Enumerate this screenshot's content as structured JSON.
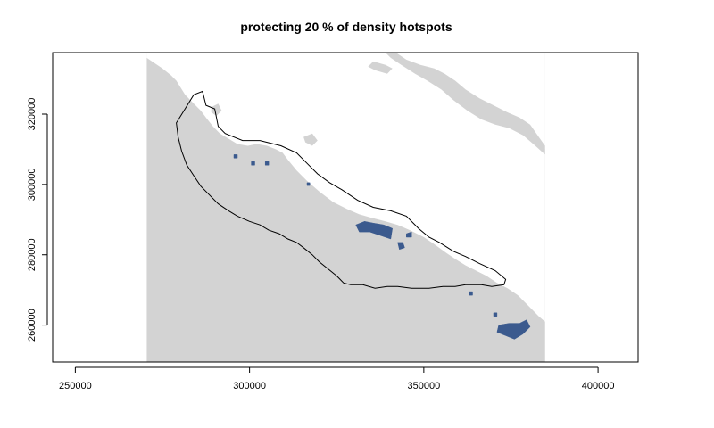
{
  "chart_data": {
    "type": "map",
    "title": "protecting 20 % of density hotspots",
    "xlabel": "",
    "ylabel": "",
    "xlim": [
      243500,
      411500
    ],
    "ylim": [
      249500,
      337500
    ],
    "x_ticks": [
      250000,
      300000,
      350000,
      400000
    ],
    "y_ticks": [
      260000,
      280000,
      300000,
      320000
    ],
    "x_tick_labels": [
      "250000",
      "300000",
      "350000",
      "400000"
    ],
    "y_tick_labels": [
      "260000",
      "280000",
      "300000",
      "320000"
    ],
    "colors": {
      "land": "#d3d3d3",
      "hotspot": "#3b5a8e",
      "boundary": "#000000"
    },
    "land_extent": {
      "x": [
        270500,
        384800
      ],
      "y": [
        249500,
        337500
      ]
    },
    "water_bodies": [
      {
        "name": "southwest-sea",
        "points": [
          [
            270500,
            336000
          ],
          [
            275000,
            333000
          ],
          [
            277500,
            331000
          ],
          [
            279000,
            329500
          ],
          [
            281500,
            325500
          ],
          [
            283500,
            323500
          ],
          [
            286000,
            321000
          ],
          [
            287500,
            319000
          ],
          [
            289500,
            316500
          ],
          [
            291500,
            314500
          ],
          [
            294000,
            313000
          ],
          [
            296500,
            311500
          ],
          [
            299500,
            311000
          ],
          [
            302000,
            311500
          ],
          [
            305000,
            311000
          ],
          [
            307500,
            310000
          ],
          [
            309500,
            309000
          ],
          [
            311000,
            307000
          ],
          [
            313500,
            304000
          ],
          [
            316500,
            301000
          ],
          [
            320000,
            298000
          ],
          [
            324000,
            295000
          ],
          [
            328000,
            293000
          ],
          [
            331500,
            291500
          ],
          [
            335000,
            290500
          ],
          [
            339000,
            289500
          ],
          [
            342500,
            288500
          ],
          [
            346000,
            287000
          ],
          [
            350000,
            285000
          ],
          [
            353000,
            283000
          ],
          [
            356500,
            280500
          ],
          [
            359500,
            278500
          ],
          [
            362000,
            277000
          ],
          [
            365000,
            275500
          ],
          [
            368000,
            274000
          ],
          [
            371000,
            272000
          ],
          [
            374000,
            270500
          ],
          [
            377000,
            268500
          ],
          [
            380000,
            265500
          ],
          [
            383000,
            262500
          ],
          [
            384800,
            261000
          ],
          [
            384800,
            337500
          ],
          [
            270500,
            337500
          ]
        ]
      },
      {
        "name": "northeast-strip",
        "points": [
          [
            352000,
            337500
          ],
          [
            356000,
            335000
          ],
          [
            361000,
            333000
          ],
          [
            366000,
            330500
          ],
          [
            370000,
            328500
          ],
          [
            374500,
            326000
          ],
          [
            378000,
            323000
          ],
          [
            380500,
            319000
          ],
          [
            382500,
            315000
          ],
          [
            384000,
            311500
          ],
          [
            384800,
            310000
          ],
          [
            384800,
            337500
          ]
        ]
      }
    ],
    "land_islands": [
      {
        "points": [
          [
            342000,
            337500
          ],
          [
            345000,
            335500
          ],
          [
            349000,
            334000
          ],
          [
            353000,
            333000
          ],
          [
            356000,
            331500
          ],
          [
            359000,
            329500
          ],
          [
            362000,
            327000
          ],
          [
            366000,
            324500
          ],
          [
            370000,
            322500
          ],
          [
            374000,
            320500
          ],
          [
            377500,
            319000
          ],
          [
            380500,
            317000
          ],
          [
            383000,
            313500
          ],
          [
            384800,
            311000
          ],
          [
            384800,
            308500
          ],
          [
            382000,
            311000
          ],
          [
            378500,
            314000
          ],
          [
            374500,
            316000
          ],
          [
            370500,
            317000
          ],
          [
            366500,
            318500
          ],
          [
            362500,
            321000
          ],
          [
            358500,
            324000
          ],
          [
            355000,
            327000
          ],
          [
            351000,
            329500
          ],
          [
            347500,
            331500
          ],
          [
            343500,
            334000
          ],
          [
            340500,
            336000
          ],
          [
            339000,
            337500
          ]
        ]
      },
      {
        "points": [
          [
            335500,
            335000
          ],
          [
            339000,
            334000
          ],
          [
            341000,
            333000
          ],
          [
            339500,
            331500
          ],
          [
            336000,
            332500
          ],
          [
            334000,
            333500
          ]
        ]
      },
      {
        "points": [
          [
            289000,
            322000
          ],
          [
            291000,
            323000
          ],
          [
            292000,
            321000
          ],
          [
            290500,
            319500
          ],
          [
            289000,
            320500
          ]
        ]
      },
      {
        "points": [
          [
            315500,
            313500
          ],
          [
            318000,
            314500
          ],
          [
            319500,
            312500
          ],
          [
            318000,
            311000
          ],
          [
            316000,
            312000
          ]
        ]
      }
    ],
    "boundary": [
      [
        279000,
        317500
      ],
      [
        284000,
        325500
      ],
      [
        286500,
        326500
      ],
      [
        287500,
        322500
      ],
      [
        290000,
        321500
      ],
      [
        291000,
        316500
      ],
      [
        293000,
        314500
      ],
      [
        298000,
        312500
      ],
      [
        303000,
        312500
      ],
      [
        309000,
        311000
      ],
      [
        313500,
        309000
      ],
      [
        316500,
        306000
      ],
      [
        319500,
        303000
      ],
      [
        323000,
        300500
      ],
      [
        326500,
        298500
      ],
      [
        331000,
        295500
      ],
      [
        335500,
        293500
      ],
      [
        340500,
        292500
      ],
      [
        345000,
        291000
      ],
      [
        348500,
        287500
      ],
      [
        351500,
        285000
      ],
      [
        354500,
        283500
      ],
      [
        358500,
        281000
      ],
      [
        362000,
        279500
      ],
      [
        366000,
        277500
      ],
      [
        370500,
        275500
      ],
      [
        373500,
        273000
      ],
      [
        373000,
        271500
      ],
      [
        369500,
        271000
      ],
      [
        366500,
        271500
      ],
      [
        362000,
        271500
      ],
      [
        359000,
        271000
      ],
      [
        355500,
        271000
      ],
      [
        351500,
        270500
      ],
      [
        346500,
        270500
      ],
      [
        342500,
        271000
      ],
      [
        339500,
        271000
      ],
      [
        336000,
        270500
      ],
      [
        332500,
        271500
      ],
      [
        329000,
        271500
      ],
      [
        327000,
        272000
      ],
      [
        325000,
        274000
      ],
      [
        322500,
        276000
      ],
      [
        320000,
        278000
      ],
      [
        318000,
        280000
      ],
      [
        315500,
        282000
      ],
      [
        313500,
        283500
      ],
      [
        311000,
        284500
      ],
      [
        308500,
        286000
      ],
      [
        305500,
        287000
      ],
      [
        303000,
        288500
      ],
      [
        300000,
        289500
      ],
      [
        296500,
        291000
      ],
      [
        294000,
        292500
      ],
      [
        291000,
        294500
      ],
      [
        288500,
        297000
      ],
      [
        286000,
        299500
      ],
      [
        284000,
        302500
      ],
      [
        282000,
        305500
      ],
      [
        280500,
        309500
      ],
      [
        279500,
        313500
      ]
    ],
    "hotspots": [
      {
        "points": [
          [
            330500,
            288500
          ],
          [
            333000,
            289500
          ],
          [
            335500,
            289000
          ],
          [
            338500,
            288500
          ],
          [
            341000,
            287500
          ],
          [
            340500,
            284500
          ],
          [
            337500,
            285500
          ],
          [
            334500,
            286500
          ],
          [
            331500,
            286500
          ]
        ]
      },
      {
        "points": [
          [
            371500,
            260000
          ],
          [
            374500,
            260500
          ],
          [
            377500,
            260500
          ],
          [
            379500,
            261500
          ],
          [
            380500,
            259500
          ],
          [
            378500,
            257500
          ],
          [
            376000,
            256000
          ],
          [
            373500,
            257000
          ],
          [
            371000,
            258000
          ]
        ]
      },
      {
        "points": [
          [
            342500,
            283500
          ],
          [
            344000,
            283500
          ],
          [
            344500,
            282000
          ],
          [
            343000,
            281500
          ]
        ]
      },
      {
        "points": [
          [
            345000,
            286000
          ],
          [
            346500,
            286500
          ],
          [
            346500,
            285000
          ],
          [
            345000,
            285000
          ]
        ]
      },
      {
        "points": [
          [
            295500,
            308500
          ],
          [
            296500,
            308500
          ],
          [
            296500,
            307500
          ],
          [
            295500,
            307500
          ]
        ]
      },
      {
        "points": [
          [
            300500,
            306500
          ],
          [
            301500,
            306500
          ],
          [
            301500,
            305500
          ],
          [
            300500,
            305500
          ]
        ]
      },
      {
        "points": [
          [
            304500,
            306500
          ],
          [
            305500,
            306500
          ],
          [
            305500,
            305500
          ],
          [
            304500,
            305500
          ]
        ]
      },
      {
        "points": [
          [
            316500,
            300500
          ],
          [
            317300,
            300500
          ],
          [
            317300,
            299700
          ],
          [
            316500,
            299700
          ]
        ]
      },
      {
        "points": [
          [
            363000,
            269500
          ],
          [
            364000,
            269500
          ],
          [
            364000,
            268500
          ],
          [
            363000,
            268500
          ]
        ]
      },
      {
        "points": [
          [
            370000,
            263500
          ],
          [
            371000,
            263500
          ],
          [
            371000,
            262500
          ],
          [
            370000,
            262500
          ]
        ]
      }
    ]
  }
}
